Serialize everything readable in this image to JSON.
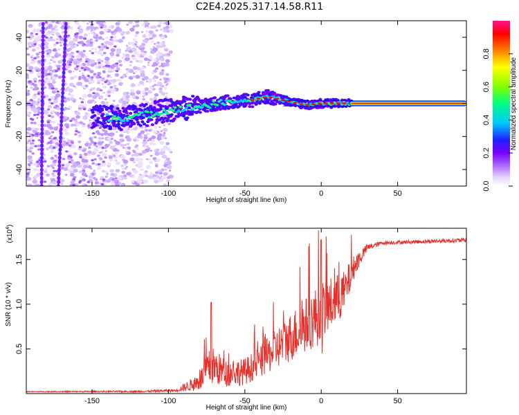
{
  "title": "C2E4.2025.317.14.58.R11",
  "chart_data": [
    {
      "type": "heatmap",
      "name": "spectrogram",
      "title": "C2E4.2025.317.14.58.R11",
      "xlabel": "Height of straight line (km)",
      "ylabel": "Frequency (Hz)",
      "xlim": [
        -193,
        95
      ],
      "ylim": [
        -50,
        50
      ],
      "xticks": [
        -150,
        -100,
        -50,
        0,
        50
      ],
      "yticks": [
        -40,
        -20,
        0,
        20,
        40
      ],
      "colorbar": {
        "label": "Normalized spectral amplitude",
        "range": [
          0.0,
          1.0
        ],
        "ticks": [
          "0.0",
          "0.2",
          "0.4",
          "0.6",
          "0.8"
        ],
        "colors": [
          "#ffffff",
          "#e8d8ff",
          "#b070ff",
          "#7a00ff",
          "#2020ff",
          "#00c8ff",
          "#00ff80",
          "#80ff00",
          "#ffff00",
          "#ff8000",
          "#ff0000",
          "#ff1090"
        ]
      },
      "ridge": [
        {
          "x": -150,
          "y": -8
        },
        {
          "x": -130,
          "y": -9
        },
        {
          "x": -110,
          "y": -6
        },
        {
          "x": -100,
          "y": -4
        },
        {
          "x": -80,
          "y": -2
        },
        {
          "x": -60,
          "y": 1
        },
        {
          "x": -45,
          "y": 2
        },
        {
          "x": -35,
          "y": 4
        },
        {
          "x": -25,
          "y": 2
        },
        {
          "x": -10,
          "y": -1
        },
        {
          "x": 0,
          "y": 0
        },
        {
          "x": 20,
          "y": 0
        },
        {
          "x": 95,
          "y": 0
        }
      ],
      "streaks": [
        {
          "x0": -182,
          "y0": 48,
          "x1": -183,
          "y1": -50
        },
        {
          "x0": -167,
          "y0": 48,
          "x1": -172,
          "y1": -50
        }
      ]
    },
    {
      "type": "line",
      "name": "snr",
      "xlabel": "Height of straight line (km)",
      "ylabel": "SNR (10 * v/v)",
      "yscale_label": "(x10",
      "yscale_exp": "4",
      "xlim": [
        -193,
        95
      ],
      "ylim": [
        0,
        1.85
      ],
      "xticks": [
        -150,
        -100,
        -50,
        0,
        50
      ],
      "yticks": [
        0.5,
        1.0,
        1.5
      ],
      "ytick_labels": [
        "0.5",
        "1.0",
        "1.5"
      ],
      "color": "#e8302a",
      "envelope": [
        {
          "x": -193,
          "base": 0.02,
          "amp": 0.01
        },
        {
          "x": -120,
          "base": 0.02,
          "amp": 0.02
        },
        {
          "x": -95,
          "base": 0.03,
          "amp": 0.03
        },
        {
          "x": -80,
          "base": 0.1,
          "amp": 0.2
        },
        {
          "x": -72,
          "base": 0.25,
          "amp": 0.45
        },
        {
          "x": -62,
          "base": 0.18,
          "amp": 0.3
        },
        {
          "x": -50,
          "base": 0.2,
          "amp": 0.3
        },
        {
          "x": -40,
          "base": 0.3,
          "amp": 0.35
        },
        {
          "x": -20,
          "base": 0.55,
          "amp": 0.55
        },
        {
          "x": 0,
          "base": 0.8,
          "amp": 0.7
        },
        {
          "x": 15,
          "base": 1.05,
          "amp": 0.5
        },
        {
          "x": 22,
          "base": 1.4,
          "amp": 0.25
        },
        {
          "x": 30,
          "base": 1.62,
          "amp": 0.08
        },
        {
          "x": 40,
          "base": 1.68,
          "amp": 0.04
        },
        {
          "x": 95,
          "base": 1.71,
          "amp": 0.05
        }
      ]
    }
  ]
}
